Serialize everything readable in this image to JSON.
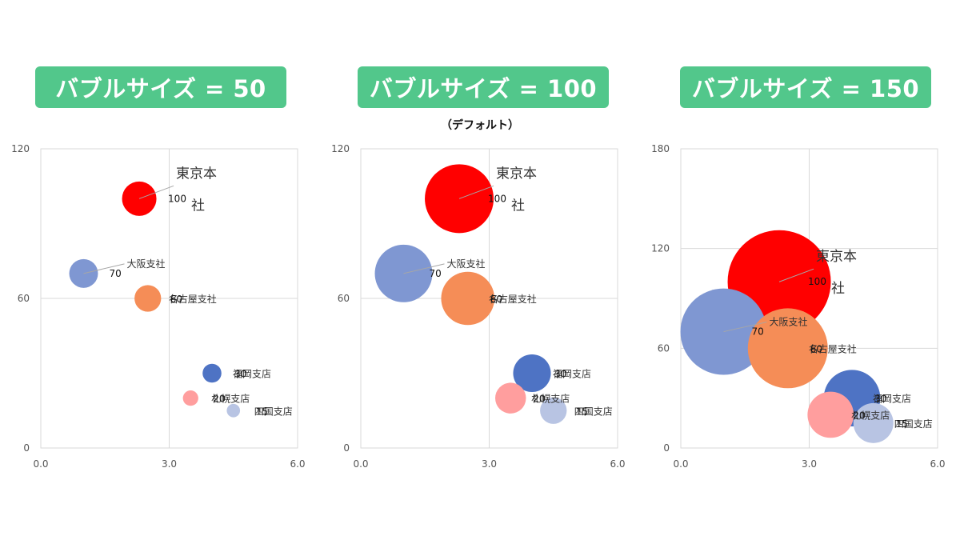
{
  "colors": {
    "badge": "#52c78b",
    "gridline": "#d9d9d9",
    "leader": "#a6a6a6",
    "tokyo": "#ff0000",
    "osaka": "#7f97d2",
    "nagoya": "#f58d57",
    "fukuoka": "#4e73c4",
    "sapporo": "#ff9e9e",
    "shikoku": "#b8c4e3"
  },
  "chart_data": [
    {
      "type": "bubble",
      "title": "バブルサイズ = 50",
      "subtitle": "",
      "bubble_scale": 50,
      "xlim": [
        0,
        6
      ],
      "ylim": [
        0,
        120
      ],
      "xticks": [
        "0.0",
        "3.0",
        "6.0"
      ],
      "yticks": [
        "0",
        "60",
        "120"
      ],
      "grid": true,
      "points": [
        {
          "name": "東京本社",
          "x": 2.3,
          "y": 100,
          "size": 100,
          "label": "100"
        },
        {
          "name": "大阪支社",
          "x": 1.0,
          "y": 70,
          "size": 70,
          "label": "70"
        },
        {
          "name": "名古屋支社",
          "x": 2.5,
          "y": 60,
          "size": 60,
          "label": "60"
        },
        {
          "name": "福岡支店",
          "x": 4.0,
          "y": 30,
          "size": 30,
          "label": "30"
        },
        {
          "name": "札幌支店",
          "x": 3.5,
          "y": 20,
          "size": 20,
          "label": "20"
        },
        {
          "name": "四国支店",
          "x": 4.5,
          "y": 15,
          "size": 15,
          "label": "15"
        }
      ]
    },
    {
      "type": "bubble",
      "title": "バブルサイズ = 100",
      "subtitle": "（デフォルト）",
      "bubble_scale": 100,
      "xlim": [
        0,
        6
      ],
      "ylim": [
        0,
        120
      ],
      "xticks": [
        "0.0",
        "3.0",
        "6.0"
      ],
      "yticks": [
        "0",
        "60",
        "120"
      ],
      "grid": true,
      "points": [
        {
          "name": "東京本社",
          "x": 2.3,
          "y": 100,
          "size": 100,
          "label": "100"
        },
        {
          "name": "大阪支社",
          "x": 1.0,
          "y": 70,
          "size": 70,
          "label": "70"
        },
        {
          "name": "名古屋支社",
          "x": 2.5,
          "y": 60,
          "size": 60,
          "label": "60"
        },
        {
          "name": "福岡支店",
          "x": 4.0,
          "y": 30,
          "size": 30,
          "label": "30"
        },
        {
          "name": "札幌支店",
          "x": 3.5,
          "y": 20,
          "size": 20,
          "label": "20"
        },
        {
          "name": "四国支店",
          "x": 4.5,
          "y": 15,
          "size": 15,
          "label": "15"
        }
      ]
    },
    {
      "type": "bubble",
      "title": "バブルサイズ = 150",
      "subtitle": "",
      "bubble_scale": 150,
      "xlim": [
        0,
        6
      ],
      "ylim": [
        0,
        180
      ],
      "xticks": [
        "0.0",
        "3.0",
        "6.0"
      ],
      "yticks": [
        "0",
        "60",
        "120",
        "180"
      ],
      "grid": true,
      "points": [
        {
          "name": "東京本社",
          "x": 2.3,
          "y": 100,
          "size": 100,
          "label": "100"
        },
        {
          "name": "大阪支社",
          "x": 1.0,
          "y": 70,
          "size": 70,
          "label": "70"
        },
        {
          "name": "名古屋支社",
          "x": 2.5,
          "y": 60,
          "size": 60,
          "label": "60"
        },
        {
          "name": "福岡支店",
          "x": 4.0,
          "y": 30,
          "size": 30,
          "label": "30"
        },
        {
          "name": "札幌支店",
          "x": 3.5,
          "y": 20,
          "size": 20,
          "label": "20"
        },
        {
          "name": "四国支店",
          "x": 4.5,
          "y": 15,
          "size": 15,
          "label": "15"
        }
      ]
    }
  ]
}
